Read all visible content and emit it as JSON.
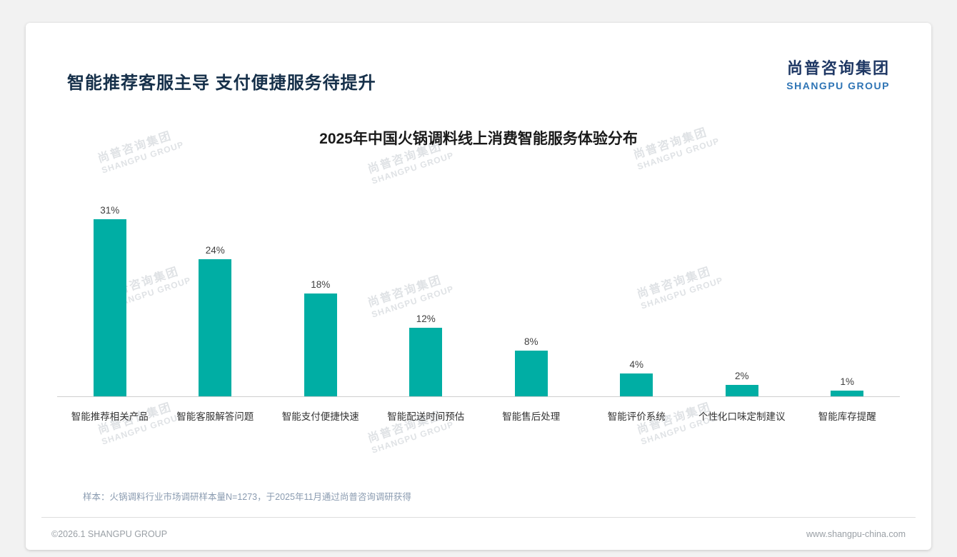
{
  "page": {
    "title": "智能推荐客服主导 支付便捷服务待提升",
    "logo": {
      "cn": "尚普咨询集团",
      "en": "SHANGPU GROUP"
    },
    "note": "样本：火锅调料行业市场调研样本量N=1273，于2025年11月通过尚普咨询调研获得",
    "footer": {
      "copyright": "©2026.1 SHANGPU GROUP",
      "website": "www.shangpu-china.com"
    },
    "watermark": {
      "cn": "尚普咨询集团",
      "en": "SHANGPU GROUP"
    }
  },
  "chart_data": {
    "type": "bar",
    "title": "2025年中国火锅调料线上消费智能服务体验分布",
    "categories": [
      "智能推荐相关产品",
      "智能客服解答问题",
      "智能支付便捷快速",
      "智能配送时间预估",
      "智能售后处理",
      "智能评价系统",
      "个性化口味定制建议",
      "智能库存提醒"
    ],
    "values": [
      31,
      24,
      18,
      12,
      8,
      4,
      2,
      1
    ],
    "value_labels": [
      "31%",
      "24%",
      "18%",
      "12%",
      "8%",
      "4%",
      "2%",
      "1%"
    ],
    "bar_color": "#00aea4",
    "ylim": [
      0,
      35
    ],
    "grid": false,
    "legend": false
  }
}
